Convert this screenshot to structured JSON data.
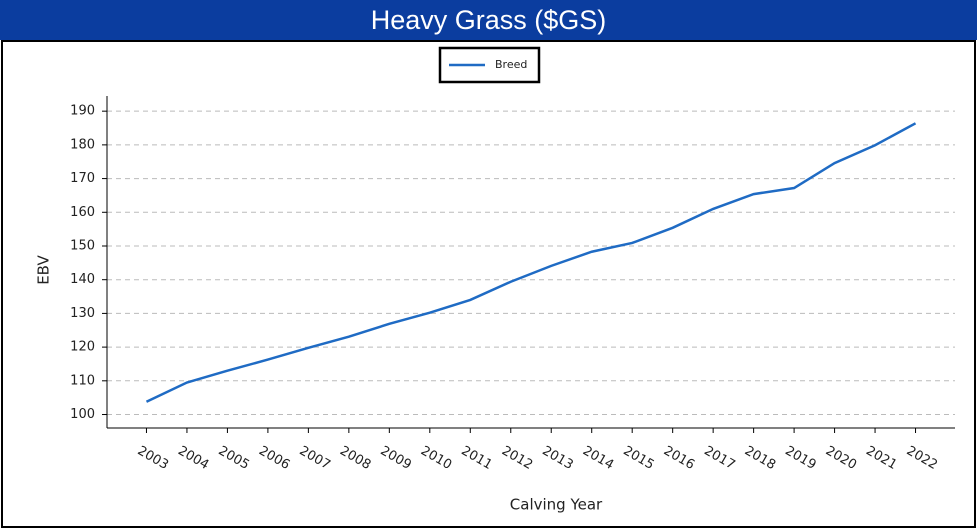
{
  "chart_data": {
    "type": "line",
    "title": "Heavy Grass ($GS)",
    "x_label": "Calving Year",
    "y_label": "EBV",
    "categories": [
      "2003",
      "2004",
      "2005",
      "2006",
      "2007",
      "2008",
      "2009",
      "2010",
      "2011",
      "2012",
      "2013",
      "2014",
      "2015",
      "2016",
      "2017",
      "2018",
      "2019",
      "2020",
      "2021",
      "2022"
    ],
    "series": [
      {
        "name": "Breed",
        "color": "#1f6bc4",
        "values": [
          103.8,
          109.5,
          113,
          116.3,
          119.8,
          123.1,
          126.9,
          130.2,
          134,
          139.4,
          144.1,
          148.3,
          150.9,
          155.4,
          161,
          165.4,
          167.2,
          174.6,
          179.9,
          186.4
        ]
      }
    ],
    "ylim": [
      96,
      194.5
    ],
    "yticks": [
      100,
      110,
      120,
      130,
      140,
      150,
      160,
      170,
      180,
      190
    ],
    "grid": true,
    "legend": "top"
  }
}
